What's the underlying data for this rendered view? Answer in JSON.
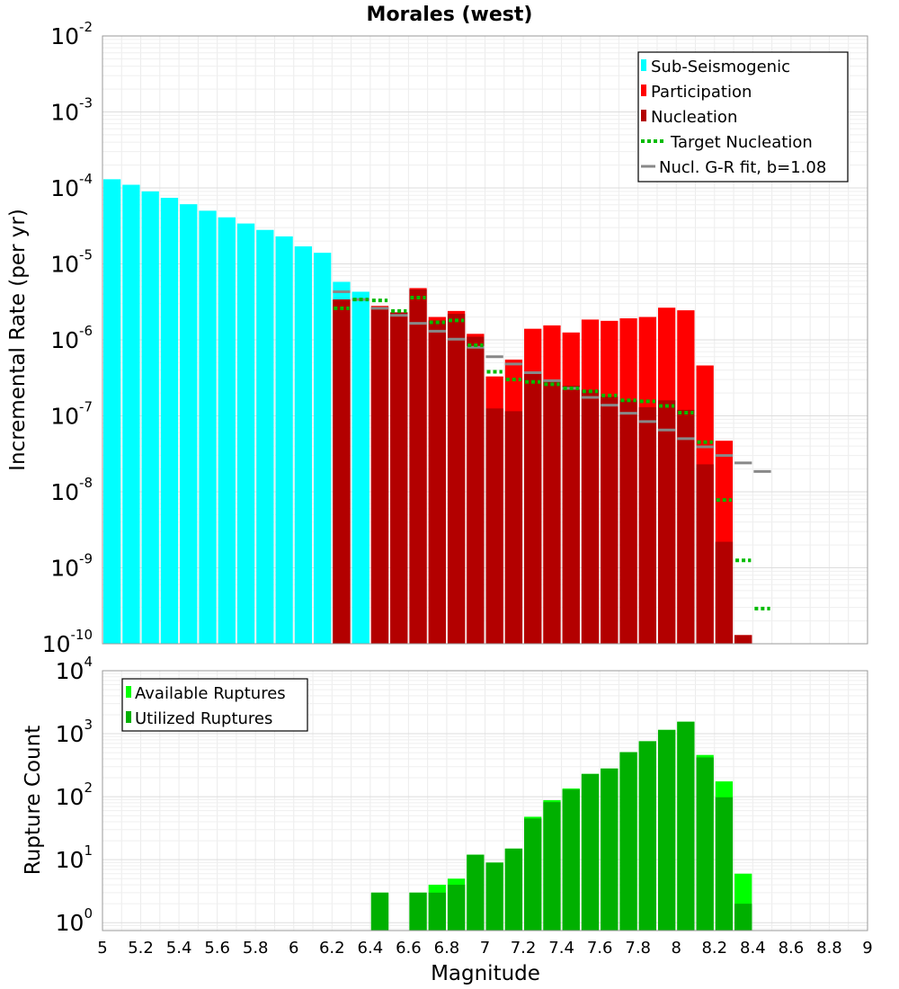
{
  "chart_data": [
    {
      "type": "bar",
      "title": "Morales (west)",
      "xlabel": "",
      "ylabel": "Incremental Rate (per yr)",
      "yscale": "log",
      "ylim": [
        1e-10,
        0.01
      ],
      "xlim": [
        5,
        9
      ],
      "grid": true,
      "legend_position": "top-right",
      "legend": {
        "sub": "Sub-Seismogenic",
        "part": "Participation",
        "nucl": "Nucleation",
        "target": "Target Nucleation",
        "gr": "Nucl. G-R fit, b=1.08"
      },
      "y_ticks": [
        {
          "base": "10",
          "exp": "-2"
        },
        {
          "base": "10",
          "exp": "-3"
        },
        {
          "base": "10",
          "exp": "-4"
        },
        {
          "base": "10",
          "exp": "-5"
        },
        {
          "base": "10",
          "exp": "-6"
        },
        {
          "base": "10",
          "exp": "-7"
        },
        {
          "base": "10",
          "exp": "-8"
        },
        {
          "base": "10",
          "exp": "-9"
        },
        {
          "base": "10",
          "exp": "-10"
        }
      ],
      "colors": {
        "sub": "#00ffff",
        "part": "#ff0000",
        "nucl": "#b30000",
        "target": "#00bb00",
        "gr": "#888888"
      },
      "series": [
        {
          "name": "Sub-Seismogenic",
          "x": [
            5.05,
            5.15,
            5.25,
            5.35,
            5.45,
            5.55,
            5.65,
            5.75,
            5.85,
            5.95,
            6.05,
            6.15,
            6.25,
            6.35
          ],
          "values": [
            0.00013,
            0.00011,
            9e-05,
            7.4e-05,
            6.1e-05,
            5e-05,
            4.1e-05,
            3.4e-05,
            2.8e-05,
            2.3e-05,
            1.7e-05,
            1.4e-05,
            5.8e-06,
            4.3e-06
          ]
        },
        {
          "name": "Participation",
          "x": [
            6.25,
            6.45,
            6.55,
            6.65,
            6.75,
            6.85,
            6.95,
            7.05,
            7.15,
            7.25,
            7.35,
            7.45,
            7.55,
            7.65,
            7.75,
            7.85,
            7.95,
            8.05,
            8.15,
            8.25,
            8.35
          ],
          "values": [
            3.4e-06,
            2.8e-06,
            2.3e-06,
            4.8e-06,
            2e-06,
            2.4e-06,
            1.2e-06,
            3.3e-07,
            5.5e-07,
            1.4e-06,
            1.55e-06,
            1.25e-06,
            1.85e-06,
            1.78e-06,
            1.92e-06,
            2e-06,
            2.65e-06,
            2.45e-06,
            4.6e-07,
            4.7e-08,
            1.3e-10
          ]
        },
        {
          "name": "Nucleation",
          "x": [
            6.25,
            6.45,
            6.55,
            6.65,
            6.75,
            6.85,
            6.95,
            7.05,
            7.15,
            7.25,
            7.35,
            7.45,
            7.55,
            7.65,
            7.75,
            7.85,
            7.95,
            8.05,
            8.15,
            8.25,
            8.35
          ],
          "values": [
            3.4e-06,
            2.7e-06,
            2.3e-06,
            4.6e-06,
            1.8e-06,
            2.2e-06,
            1.1e-06,
            1.25e-07,
            1.15e-07,
            3.7e-07,
            2.9e-07,
            2.5e-07,
            2.2e-07,
            1.8e-07,
            1.6e-07,
            1.3e-07,
            1.6e-07,
            1.2e-07,
            2.3e-08,
            2.2e-09,
            1.3e-10
          ]
        },
        {
          "name": "Target Nucleation",
          "x": [
            6.25,
            6.35,
            6.45,
            6.55,
            6.65,
            6.75,
            6.85,
            6.95,
            7.05,
            7.15,
            7.25,
            7.35,
            7.45,
            7.55,
            7.65,
            7.75,
            7.85,
            7.95,
            8.05,
            8.15,
            8.25,
            8.35,
            8.45
          ],
          "values": [
            2.6e-06,
            3.4e-06,
            3.3e-06,
            2.4e-06,
            3.6e-06,
            1.7e-06,
            1.8e-06,
            8.5e-07,
            3.8e-07,
            3e-07,
            2.8e-07,
            2.6e-07,
            2.3e-07,
            2.1e-07,
            1.85e-07,
            1.6e-07,
            1.55e-07,
            1.35e-07,
            1.1e-07,
            4.5e-08,
            7.8e-09,
            1.25e-09,
            2.9e-10
          ]
        },
        {
          "name": "Nucl. G-R fit, b=1.08",
          "x": [
            6.25,
            6.35,
            6.45,
            6.55,
            6.65,
            6.75,
            6.85,
            6.95,
            7.05,
            7.15,
            7.25,
            7.35,
            7.45,
            7.55,
            7.65,
            7.75,
            7.85,
            7.95,
            8.05,
            8.15,
            8.25,
            8.35,
            8.45
          ],
          "values": [
            4.3e-06,
            3.4e-06,
            2.6e-06,
            2.1e-06,
            1.65e-06,
            1.3e-06,
            1.02e-06,
            8e-07,
            6e-07,
            4.8e-07,
            3.7e-07,
            2.9e-07,
            2.3e-07,
            1.75e-07,
            1.38e-07,
            1.08e-07,
            8.4e-08,
            6.5e-08,
            5e-08,
            3.9e-08,
            3e-08,
            2.4e-08,
            1.85e-08
          ]
        }
      ]
    },
    {
      "type": "bar",
      "title": "",
      "xlabel": "Magnitude",
      "ylabel": "Rupture Count",
      "yscale": "log",
      "ylim": [
        0.75,
        10000
      ],
      "xlim": [
        5,
        9
      ],
      "grid": true,
      "legend_position": "top-left",
      "legend": {
        "avail": "Available Ruptures",
        "util": "Utilized Ruptures"
      },
      "colors": {
        "avail": "#00ff00",
        "util": "#00b000"
      },
      "x_tick_labels": [
        "5",
        "5.2",
        "5.4",
        "5.6",
        "5.8",
        "6",
        "6.2",
        "6.4",
        "6.6",
        "6.8",
        "7",
        "7.2",
        "7.4",
        "7.6",
        "7.8",
        "8",
        "8.2",
        "8.4",
        "8.6",
        "8.8",
        "9"
      ],
      "y_ticks": [
        {
          "base": "10",
          "exp": "4"
        },
        {
          "base": "10",
          "exp": "3"
        },
        {
          "base": "10",
          "exp": "2"
        },
        {
          "base": "10",
          "exp": "1"
        },
        {
          "base": "10",
          "exp": "0"
        }
      ],
      "series": [
        {
          "name": "Available Ruptures",
          "x": [
            6.45,
            6.65,
            6.75,
            6.85,
            6.95,
            7.05,
            7.15,
            7.25,
            7.35,
            7.45,
            7.55,
            7.65,
            7.75,
            7.85,
            7.95,
            8.05,
            8.15,
            8.25,
            8.35
          ],
          "values": [
            3,
            3,
            4,
            5,
            12,
            9,
            15,
            48,
            88,
            135,
            230,
            280,
            510,
            760,
            1150,
            1550,
            460,
            175,
            6
          ]
        },
        {
          "name": "Utilized Ruptures",
          "x": [
            6.45,
            6.65,
            6.75,
            6.85,
            6.95,
            7.05,
            7.15,
            7.25,
            7.35,
            7.45,
            7.55,
            7.65,
            7.75,
            7.85,
            7.95,
            8.05,
            8.15,
            8.25,
            8.35
          ],
          "values": [
            3,
            3,
            3,
            4,
            12,
            9,
            15,
            45,
            82,
            130,
            230,
            280,
            510,
            760,
            1150,
            1550,
            420,
            98,
            2
          ]
        }
      ]
    }
  ]
}
